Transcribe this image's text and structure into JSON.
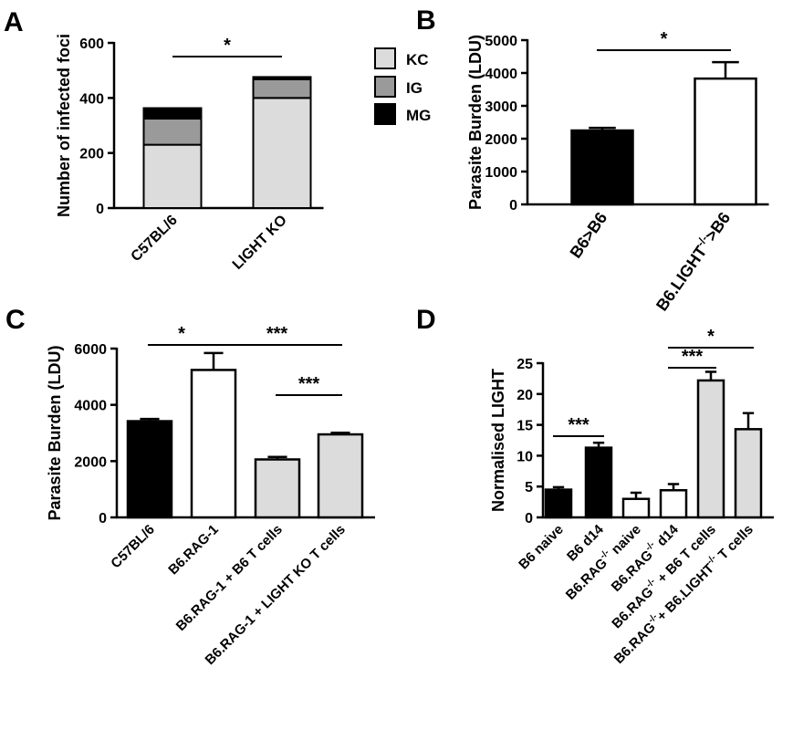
{
  "colors": {
    "black": "#000000",
    "white": "#ffffff",
    "light_gray": "#dcdcdc",
    "mid_gray": "#9a9a9a"
  },
  "panels": [
    {
      "letter": "A"
    },
    {
      "letter": "B"
    },
    {
      "letter": "C"
    },
    {
      "letter": "D"
    }
  ],
  "chart_data": [
    {
      "id": "A",
      "type": "bar",
      "stacked": true,
      "title": "",
      "ylabel": "Number of infected foci",
      "xlabel": "",
      "ylim": [
        0,
        600
      ],
      "yticks": [
        0,
        200,
        400,
        600
      ],
      "categories": [
        "C57BL/6",
        "LIGHT KO"
      ],
      "series": [
        {
          "name": "KC",
          "color": "#dcdcdc",
          "values": [
            230,
            400
          ],
          "errors": [
            5,
            5
          ]
        },
        {
          "name": "IG",
          "color": "#9a9a9a",
          "values": [
            95,
            68
          ],
          "errors": [
            0,
            0
          ]
        },
        {
          "name": "MG",
          "color": "#000000",
          "values": [
            38,
            8
          ],
          "errors": [
            0,
            0
          ]
        }
      ],
      "legend": "right",
      "significance": [
        {
          "from": 0,
          "to": 1,
          "label": "*"
        }
      ]
    },
    {
      "id": "B",
      "type": "bar",
      "title": "",
      "ylabel": "Parasite Burden (LDU)",
      "xlabel": "",
      "ylim": [
        0,
        5000
      ],
      "yticks": [
        0,
        1000,
        2000,
        3000,
        4000,
        5000
      ],
      "categories": [
        "B6>B6",
        "B6.LIGHT>B6"
      ],
      "category_sup": [
        "",
        "-/-"
      ],
      "values": [
        2250,
        3830
      ],
      "errors": [
        80,
        500
      ],
      "colors": [
        "#000000",
        "#ffffff"
      ],
      "significance": [
        {
          "from": 0,
          "to": 1,
          "label": "*"
        }
      ]
    },
    {
      "id": "C",
      "type": "bar",
      "title": "",
      "ylabel": "Parasite Burden (LDU)",
      "xlabel": "",
      "ylim": [
        0,
        6000
      ],
      "yticks": [
        0,
        2000,
        4000,
        6000
      ],
      "categories": [
        "C57BL/6",
        "B6.RAG-1",
        "B6.RAG-1 + B6 T cells",
        "B6.RAG-1 + LIGHT KO T cells"
      ],
      "values": [
        3420,
        5240,
        2060,
        2950
      ],
      "errors": [
        80,
        600,
        90,
        60
      ],
      "colors": [
        "#000000",
        "#ffffff",
        "#dcdcdc",
        "#dcdcdc"
      ],
      "significance": [
        {
          "from": 0,
          "to": 1,
          "label": "*"
        },
        {
          "from": 1,
          "to": 3,
          "label": "***"
        },
        {
          "from": 2,
          "to": 3,
          "label": "***"
        }
      ]
    },
    {
      "id": "D",
      "type": "bar",
      "title": "",
      "ylabel": "Normalised LIGHT",
      "xlabel": "",
      "ylim": [
        0,
        25
      ],
      "yticks": [
        0,
        5,
        10,
        15,
        20,
        25
      ],
      "categories": [
        "B6 naive",
        "B6 d14",
        "B6.RAG naive",
        "B6.RAG d14",
        "B6.RAG + B6 T cells",
        "B6.RAG + B6.LIGHT T cells"
      ],
      "label_parts": [
        [
          {
            "t": "B6 naive"
          }
        ],
        [
          {
            "t": "B6 d14"
          }
        ],
        [
          {
            "t": "B6.RAG"
          },
          {
            "t": "-/-",
            "sup": true
          },
          {
            "t": " naive"
          }
        ],
        [
          {
            "t": "B6.RAG"
          },
          {
            "t": "-/-",
            "sup": true
          },
          {
            "t": " d14"
          }
        ],
        [
          {
            "t": "B6.RAG"
          },
          {
            "t": "-/-",
            "sup": true
          },
          {
            "t": " + B6 T cells"
          }
        ],
        [
          {
            "t": "B6.RAG"
          },
          {
            "t": "-/-",
            "sup": true
          },
          {
            "t": "+ B6.LIGHT"
          },
          {
            "t": "-/-",
            "sup": true
          },
          {
            "t": " T cells"
          }
        ]
      ],
      "values": [
        4.5,
        11.3,
        3.0,
        4.4,
        22.2,
        14.3
      ],
      "errors": [
        0.4,
        0.8,
        1.0,
        1.0,
        1.4,
        2.6
      ],
      "colors": [
        "#000000",
        "#000000",
        "#ffffff",
        "#ffffff",
        "#dcdcdc",
        "#dcdcdc"
      ],
      "significance": [
        {
          "from": 0,
          "to": 1,
          "label": "***"
        },
        {
          "from": 3,
          "to": 4,
          "label": "***"
        },
        {
          "from": 3,
          "to": 5,
          "label": "*"
        }
      ]
    }
  ]
}
